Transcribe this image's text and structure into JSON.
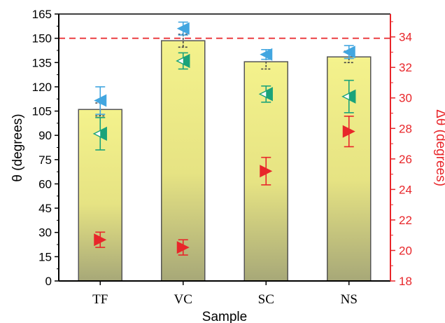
{
  "chart_data": {
    "type": "bar",
    "categories": [
      "TF",
      "VC",
      "SC",
      "NS"
    ],
    "xlabel": "Sample",
    "ylabel": "θ (degrees)",
    "y2label": "Δθ (degrees)",
    "ylim": [
      0,
      165
    ],
    "y2lim": [
      18,
      35.5
    ],
    "yticks": [
      0,
      15,
      30,
      45,
      60,
      75,
      90,
      105,
      120,
      135,
      150,
      165
    ],
    "y2ticks": [
      18,
      20,
      22,
      24,
      26,
      28,
      30,
      32,
      34
    ],
    "reference_line": {
      "axis": "y",
      "value": 150,
      "color": "#e8262a",
      "style": "dashed"
    },
    "bars": {
      "values": [
        106,
        148.5,
        135.5,
        138.5
      ],
      "errors": [
        4,
        4,
        4.5,
        3.5
      ],
      "fill_top": "#f4f28c",
      "fill_bottom": "#a7a878"
    },
    "series": [
      {
        "marker": "blue-left-triangle",
        "axis": "left",
        "color": "#42a6e0",
        "values": [
          111.5,
          156,
          140,
          141.5
        ],
        "errors": [
          8.5,
          4,
          3,
          4
        ]
      },
      {
        "marker": "teal-half-left-triangle",
        "axis": "left",
        "color": "#1aa37a",
        "values": [
          91,
          136,
          115.5,
          114
        ],
        "errors": [
          10,
          5,
          5,
          10
        ]
      },
      {
        "marker": "red-right-triangle",
        "axis": "right",
        "color": "#e8262a",
        "values": [
          20.7,
          20.2,
          25.2,
          27.8
        ],
        "errors": [
          0.5,
          0.5,
          0.9,
          1.0
        ]
      }
    ],
    "grid": false,
    "legend": "none"
  }
}
